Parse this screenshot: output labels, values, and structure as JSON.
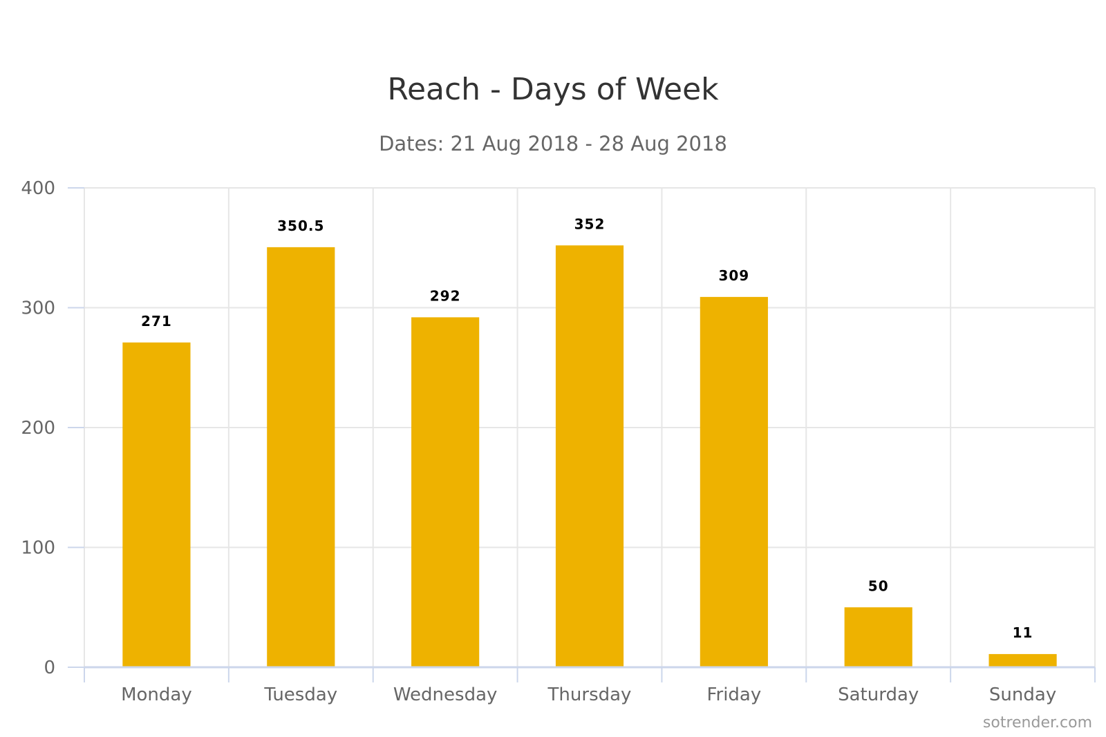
{
  "chart_data": {
    "type": "bar",
    "title": "Reach - Days of Week",
    "subtitle": "Dates: 21 Aug 2018 - 28 Aug 2018",
    "categories": [
      "Monday",
      "Tuesday",
      "Wednesday",
      "Thursday",
      "Friday",
      "Saturday",
      "Sunday"
    ],
    "values": [
      271,
      350.5,
      292,
      352,
      309,
      50,
      11
    ],
    "value_labels": [
      "271",
      "350.5",
      "292",
      "352",
      "309",
      "50",
      "11"
    ],
    "ylim": [
      0,
      400
    ],
    "yticks": [
      0,
      100,
      200,
      300,
      400
    ],
    "ytick_labels": [
      "0",
      "100",
      "200",
      "300",
      "400"
    ],
    "grid": true,
    "legend": "none",
    "bar_color": "#EEB200",
    "credit": "sotrender.com"
  }
}
